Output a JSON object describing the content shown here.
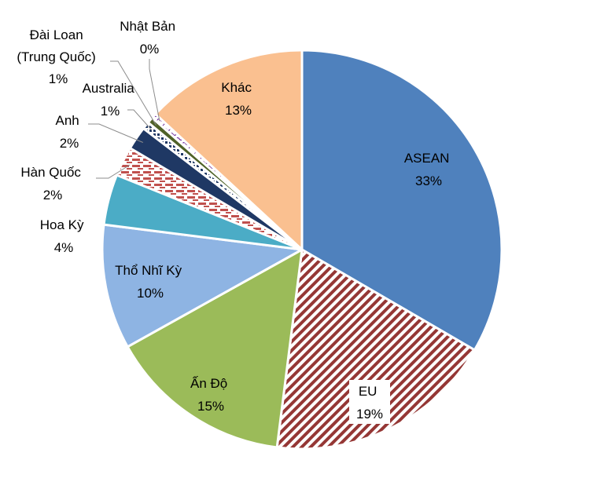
{
  "chart_data": {
    "type": "pie",
    "title": "",
    "slices": [
      {
        "label_lines": [
          "ASEAN"
        ],
        "pct_label": "33%",
        "value": 33.4,
        "color": "#4f81bd",
        "pattern": "solid"
      },
      {
        "label_lines": [
          "EU"
        ],
        "pct_label": "19%",
        "value": 18.6,
        "color": "#953735",
        "pattern": "diagonal-stripes"
      },
      {
        "label_lines": [
          "Ấn Độ"
        ],
        "pct_label": "15%",
        "value": 14.9,
        "color": "#9bbb59",
        "pattern": "solid"
      },
      {
        "label_lines": [
          "Thổ Nhĩ Kỳ"
        ],
        "pct_label": "10%",
        "value": 10.1,
        "color": "#8eb4e3",
        "pattern": "solid"
      },
      {
        "label_lines": [
          "Hoa Kỳ"
        ],
        "pct_label": "4%",
        "value": 4.1,
        "color": "#4bacc6",
        "pattern": "solid"
      },
      {
        "label_lines": [
          "Hàn Quốc"
        ],
        "pct_label": "2%",
        "value": 2.4,
        "color": "#c0504d",
        "pattern": "horizontal-dashes"
      },
      {
        "label_lines": [
          "Anh"
        ],
        "pct_label": "2%",
        "value": 1.9,
        "color": "#1f3864",
        "pattern": "solid"
      },
      {
        "label_lines": [
          "Australia"
        ],
        "pct_label": "1%",
        "value": 0.6,
        "color": "#1f3864",
        "pattern": "dots"
      },
      {
        "label_lines": [
          "Đài Loan",
          "(Trung Quốc)"
        ],
        "pct_label": "1%",
        "value": 0.5,
        "color": "#4f6228",
        "pattern": "solid"
      },
      {
        "label_lines": [
          "Nhật Bản"
        ],
        "pct_label": "0%",
        "value": 0.4,
        "color": "#7030a0",
        "pattern": "wave"
      },
      {
        "label_lines": [
          "Khác"
        ],
        "pct_label": "13%",
        "value": 13.1,
        "color": "#fac090",
        "pattern": "solid"
      }
    ]
  }
}
